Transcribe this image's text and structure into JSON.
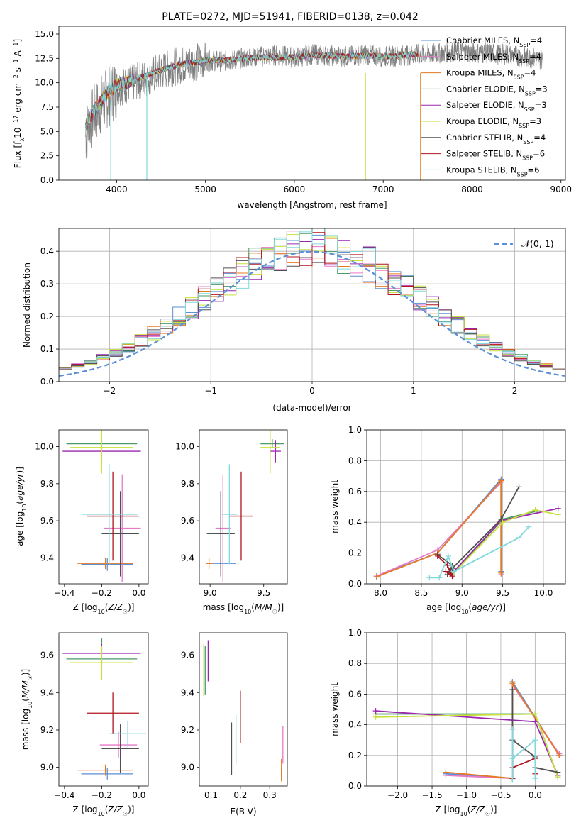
{
  "title": "PLATE=0272, MJD=51941, FIBERID=0138, z=0.042",
  "colors": {
    "Chabrier MILES": "#5b8fd6",
    "Salpeter MILES": "#e67ac8",
    "Kroupa MILES": "#e57a22",
    "Chabrier ELODIE": "#4a9a6a",
    "Salpeter ELODIE": "#9b27b0",
    "Kroupa ELODIE": "#c8e03a",
    "Chabrier STELIB": "#505050",
    "Salpeter STELIB": "#b0141e",
    "Kroupa STELIB": "#7fd8dc",
    "data": "#7f7f7f",
    "normal": "#5b8fd6"
  },
  "chart_data": [
    {
      "type": "line",
      "title": "PLATE=0272, MJD=51941, FIBERID=0138, z=0.042",
      "xlabel": "wavelength [Angstrom, rest frame]",
      "ylabel": "Flux [f_λ10^-17 erg cm^-2 s^-1 A^-1]",
      "xlim": [
        3350,
        9050
      ],
      "ylim": [
        0,
        15.8
      ],
      "xticks": [
        4000,
        5000,
        6000,
        7000,
        8000,
        9000
      ],
      "yticks": [
        0.0,
        2.5,
        5.0,
        7.5,
        10.0,
        12.5,
        15.0
      ],
      "grid": false,
      "legend": "top-right",
      "data_x": [
        3650,
        3700,
        3800,
        3900,
        4000,
        4200,
        4400,
        4600,
        4800,
        5000,
        5200,
        5400,
        5600,
        5800,
        6000,
        6200,
        6400,
        6600,
        6800,
        7000,
        7200,
        7400,
        7600,
        7800,
        8000,
        8200,
        8400,
        8600,
        8800
      ],
      "data_y": [
        4.5,
        6.0,
        7.5,
        8.5,
        9.5,
        10.0,
        10.8,
        11.5,
        12.0,
        12.3,
        12.2,
        12.5,
        12.7,
        12.8,
        12.6,
        12.9,
        12.8,
        12.7,
        12.9,
        12.7,
        12.8,
        12.9,
        13.0,
        13.2,
        13.1,
        13.0,
        12.9,
        12.6,
        12.4
      ],
      "model_x": [
        3650,
        3700,
        3800,
        3900,
        4000,
        4200,
        4400,
        4600,
        4800,
        5000,
        5200,
        5400,
        5600,
        5800,
        6000,
        6200,
        6400,
        6600,
        6800,
        7000,
        7200,
        7400
      ],
      "model_y": [
        5.5,
        6.5,
        7.8,
        9.0,
        9.8,
        10.3,
        11.0,
        11.6,
        12.0,
        12.3,
        12.3,
        12.5,
        12.6,
        12.6,
        12.6,
        12.8,
        12.8,
        12.7,
        12.8,
        12.7,
        12.8,
        13.0
      ],
      "series": [
        {
          "name": "Chabrier MILES, N_SSP=4",
          "label_main": "Chabrier MILES, N",
          "label_sub": "SSP",
          "label_tail": "=4"
        },
        {
          "name": "Salpeter MILES, N_SSP=4",
          "label_main": "Salpeter MILES, N",
          "label_sub": "SSP",
          "label_tail": "=4"
        },
        {
          "name": "Kroupa MILES, N_SSP=4",
          "label_main": "Kroupa MILES, N",
          "label_sub": "SSP",
          "label_tail": "=4"
        },
        {
          "name": "Chabrier ELODIE, N_SSP=3",
          "label_main": "Chabrier ELODIE, N",
          "label_sub": "SSP",
          "label_tail": "=3"
        },
        {
          "name": "Salpeter ELODIE, N_SSP=3",
          "label_main": "Salpeter ELODIE, N",
          "label_sub": "SSP",
          "label_tail": "=3"
        },
        {
          "name": "Kroupa ELODIE, N_SSP=3",
          "label_main": "Kroupa ELODIE, N",
          "label_sub": "SSP",
          "label_tail": "=3"
        },
        {
          "name": "Chabrier STELIB, N_SSP=4",
          "label_main": "Chabrier STELIB, N",
          "label_sub": "SSP",
          "label_tail": "=4"
        },
        {
          "name": "Salpeter STELIB, N_SSP=6",
          "label_main": "Salpeter STELIB, N",
          "label_sub": "SSP",
          "label_tail": "=6"
        },
        {
          "name": "Kroupa STELIB, N_SSP=6",
          "label_main": "Kroupa STELIB, N",
          "label_sub": "SSP",
          "label_tail": "=6"
        }
      ]
    },
    {
      "type": "histogram",
      "xlabel": "(data-model)/error",
      "ylabel": "Normed distribution",
      "xlim": [
        -2.5,
        2.5
      ],
      "ylim": [
        0,
        0.47
      ],
      "xticks": [
        -2,
        -1,
        0,
        1,
        2
      ],
      "yticks": [
        0.0,
        0.1,
        0.2,
        0.3,
        0.4
      ],
      "grid": true,
      "legend": "top-right",
      "legend_label": "𝒩(0, 1)",
      "bin_width": 0.125,
      "bin_start": -2.5,
      "normal_curve": true
    },
    {
      "type": "errorbar",
      "xlabel": "Z [log10(Z/Z☉)]",
      "ylabel": "age [log10(age/yr)]",
      "xlim": [
        -0.43,
        0.05
      ],
      "ylim": [
        9.26,
        10.09
      ],
      "xticks": [
        -0.4,
        -0.2,
        0.0
      ],
      "yticks": [
        9.4,
        9.6,
        9.8,
        10.0
      ],
      "points": [
        {
          "s": "Chabrier MILES",
          "x": -0.17,
          "xe": 0.14,
          "y": 9.365,
          "ye": 0.035
        },
        {
          "s": "Salpeter MILES",
          "x": -0.09,
          "xe": 0.1,
          "y": 9.56,
          "ye": 0.29
        },
        {
          "s": "Kroupa MILES",
          "x": -0.18,
          "xe": 0.15,
          "y": 9.37,
          "ye": 0.03
        },
        {
          "s": "Chabrier ELODIE",
          "x": -0.2,
          "xe": 0.19,
          "y": 10.015,
          "ye": 0.025
        },
        {
          "s": "Salpeter ELODIE",
          "x": -0.2,
          "xe": 0.21,
          "y": 9.975,
          "ye": 0.06
        },
        {
          "s": "Kroupa ELODIE",
          "x": -0.2,
          "xe": 0.17,
          "y": 9.995,
          "ye": 0.14
        },
        {
          "s": "Chabrier STELIB",
          "x": -0.1,
          "xe": 0.1,
          "y": 9.53,
          "ye": 0.23
        },
        {
          "s": "Salpeter STELIB",
          "x": -0.14,
          "xe": 0.14,
          "y": 9.625,
          "ye": 0.24
        },
        {
          "s": "Kroupa STELIB",
          "x": -0.16,
          "xe": 0.15,
          "y": 9.635,
          "ye": 0.27
        }
      ]
    },
    {
      "type": "errorbar",
      "xlabel": "mass [log10(M/M☉)]",
      "ylabel": "",
      "xlim": [
        8.9,
        9.72
      ],
      "ylim": [
        9.26,
        10.09
      ],
      "xticks": [
        9.0,
        9.5
      ],
      "yticks": [
        9.4,
        9.6,
        9.8,
        10.0
      ],
      "points": [
        {
          "s": "Chabrier MILES",
          "x": 9.1,
          "xe": 0.14,
          "y": 9.37,
          "ye": 0.03
        },
        {
          "s": "Salpeter MILES",
          "x": 9.12,
          "xe": 0.07,
          "y": 9.56,
          "ye": 0.29
        },
        {
          "s": "Kroupa MILES",
          "x": 8.99,
          "xe": 0.03,
          "y": 9.37,
          "ye": 0.03
        },
        {
          "s": "Chabrier ELODIE",
          "x": 9.58,
          "xe": 0.11,
          "y": 10.015,
          "ye": 0.025
        },
        {
          "s": "Salpeter ELODIE",
          "x": 9.61,
          "xe": 0.05,
          "y": 9.975,
          "ye": 0.06
        },
        {
          "s": "Kroupa ELODIE",
          "x": 9.56,
          "xe": 0.09,
          "y": 9.995,
          "ye": 0.14
        },
        {
          "s": "Chabrier STELIB",
          "x": 9.1,
          "xe": 0.13,
          "y": 9.53,
          "ye": 0.23
        },
        {
          "s": "Salpeter STELIB",
          "x": 9.29,
          "xe": 0.11,
          "y": 9.625,
          "ye": 0.24
        },
        {
          "s": "Kroupa STELIB",
          "x": 9.18,
          "xe": 0.07,
          "y": 9.635,
          "ye": 0.27
        }
      ]
    },
    {
      "type": "line",
      "xlabel": "age  [log10(age/yr)]",
      "ylabel": "mass weight",
      "xlim": [
        7.83,
        10.27
      ],
      "ylim": [
        0,
        1.0
      ],
      "xticks": [
        8.0,
        8.5,
        9.0,
        9.5,
        10.0
      ],
      "yticks": [
        0.0,
        0.2,
        0.4,
        0.6,
        0.8,
        1.0
      ],
      "grid": true,
      "series": [
        {
          "s": "Chabrier MILES",
          "x": [
            7.95,
            8.7,
            9.48,
            9.48
          ],
          "y": [
            0.05,
            0.2,
            0.68,
            0.08
          ]
        },
        {
          "s": "Salpeter MILES",
          "x": [
            7.95,
            8.7,
            9.48,
            9.48
          ],
          "y": [
            0.05,
            0.22,
            0.66,
            0.06
          ]
        },
        {
          "s": "Kroupa MILES",
          "x": [
            7.95,
            8.7,
            9.48,
            9.48
          ],
          "y": [
            0.045,
            0.2,
            0.67,
            0.07
          ]
        },
        {
          "s": "Chabrier ELODIE",
          "x": [
            8.88,
            9.5,
            9.9
          ],
          "y": [
            0.06,
            0.42,
            0.47
          ]
        },
        {
          "s": "Salpeter ELODIE",
          "x": [
            8.88,
            9.48,
            10.18
          ],
          "y": [
            0.07,
            0.41,
            0.49
          ]
        },
        {
          "s": "Kroupa ELODIE",
          "x": [
            8.88,
            9.5,
            9.9,
            10.18
          ],
          "y": [
            0.06,
            0.4,
            0.48,
            0.45
          ]
        },
        {
          "s": "Chabrier STELIB",
          "x": [
            8.7,
            8.88,
            8.82,
            8.88,
            9.48,
            9.7
          ],
          "y": [
            0.19,
            0.12,
            0.06,
            0.1,
            0.42,
            0.63
          ]
        },
        {
          "s": "Salpeter STELIB",
          "x": [
            8.7,
            8.82,
            8.88,
            8.8
          ],
          "y": [
            0.18,
            0.12,
            0.05,
            0.08
          ]
        },
        {
          "s": "Kroupa STELIB",
          "x": [
            8.6,
            8.72,
            8.83,
            8.9,
            9.7,
            9.82
          ],
          "y": [
            0.04,
            0.04,
            0.18,
            0.08,
            0.3,
            0.37
          ]
        }
      ]
    },
    {
      "type": "errorbar",
      "xlabel": "Z [log10(Z/Z☉)]",
      "ylabel": "mass [log10(M/M☉)]",
      "xlim": [
        -0.43,
        0.05
      ],
      "ylim": [
        8.9,
        9.72
      ],
      "xticks": [
        -0.4,
        -0.2,
        0.0
      ],
      "yticks": [
        9.0,
        9.2,
        9.4,
        9.6
      ],
      "points": [
        {
          "s": "Chabrier MILES",
          "x": -0.17,
          "xe": 0.14,
          "y": 8.965,
          "ye": 0.03
        },
        {
          "s": "Salpeter MILES",
          "x": -0.11,
          "xe": 0.1,
          "y": 9.12,
          "ye": 0.07
        },
        {
          "s": "Kroupa MILES",
          "x": -0.18,
          "xe": 0.15,
          "y": 8.985,
          "ye": 0.03
        },
        {
          "s": "Chabrier ELODIE",
          "x": -0.2,
          "xe": 0.19,
          "y": 9.58,
          "ye": 0.11
        },
        {
          "s": "Salpeter ELODIE",
          "x": -0.2,
          "xe": 0.21,
          "y": 9.61,
          "ye": 0.05
        },
        {
          "s": "Kroupa ELODIE",
          "x": -0.2,
          "xe": 0.17,
          "y": 9.56,
          "ye": 0.09
        },
        {
          "s": "Chabrier STELIB",
          "x": -0.1,
          "xe": 0.1,
          "y": 9.1,
          "ye": 0.13
        },
        {
          "s": "Salpeter STELIB",
          "x": -0.14,
          "xe": 0.14,
          "y": 9.29,
          "ye": 0.11
        },
        {
          "s": "Kroupa STELIB",
          "x": -0.06,
          "xe": 0.1,
          "y": 9.18,
          "ye": 0.07
        }
      ]
    },
    {
      "type": "errorbar",
      "xlabel": "E(B-V)",
      "ylabel": "",
      "xlim": [
        0.06,
        0.36
      ],
      "ylim": [
        8.9,
        9.72
      ],
      "xticks": [
        0.1,
        0.2,
        0.3
      ],
      "yticks": [
        9.0,
        9.2,
        9.4,
        9.6
      ],
      "points": [
        {
          "s": "Chabrier MILES",
          "x": 0.34,
          "xe": 0.0,
          "y": 8.965,
          "ye": 0.03
        },
        {
          "s": "Salpeter MILES",
          "x": 0.345,
          "xe": 0.0,
          "y": 9.12,
          "ye": 0.1
        },
        {
          "s": "Kroupa MILES",
          "x": 0.34,
          "xe": 0.0,
          "y": 8.985,
          "ye": 0.06
        },
        {
          "s": "Chabrier ELODIE",
          "x": 0.08,
          "xe": 0.0,
          "y": 9.52,
          "ye": 0.13
        },
        {
          "s": "Salpeter ELODIE",
          "x": 0.09,
          "xe": 0.0,
          "y": 9.57,
          "ye": 0.11
        },
        {
          "s": "Kroupa ELODIE",
          "x": 0.075,
          "xe": 0.0,
          "y": 9.52,
          "ye": 0.14
        },
        {
          "s": "Chabrier STELIB",
          "x": 0.17,
          "xe": 0.0,
          "y": 9.1,
          "ye": 0.14
        },
        {
          "s": "Salpeter STELIB",
          "x": 0.2,
          "xe": 0.0,
          "y": 9.27,
          "ye": 0.14
        },
        {
          "s": "Kroupa STELIB",
          "x": 0.185,
          "xe": 0.0,
          "y": 9.15,
          "ye": 0.13
        }
      ]
    },
    {
      "type": "line",
      "xlabel": "Z [log10(Z/Z☉)]",
      "ylabel": "mass weight",
      "xlim": [
        -2.45,
        0.44
      ],
      "ylim": [
        0,
        1.0
      ],
      "xticks": [
        -2.0,
        -1.5,
        -1.0,
        -0.5,
        0.0
      ],
      "yticks": [
        0.0,
        0.2,
        0.4,
        0.6,
        0.8,
        1.0
      ],
      "grid": true,
      "series": [
        {
          "s": "Chabrier MILES",
          "x": [
            -1.3,
            -0.33,
            -0.33,
            0.35
          ],
          "y": [
            0.08,
            0.05,
            0.68,
            0.2
          ]
        },
        {
          "s": "Salpeter MILES",
          "x": [
            -1.3,
            -0.33,
            -0.33,
            0.35
          ],
          "y": [
            0.07,
            0.05,
            0.66,
            0.21
          ]
        },
        {
          "s": "Kroupa MILES",
          "x": [
            -1.3,
            -0.33,
            -0.33,
            0.35
          ],
          "y": [
            0.09,
            0.05,
            0.67,
            0.2
          ]
        },
        {
          "s": "Chabrier ELODIE",
          "x": [
            -2.32,
            0.0,
            0.33
          ],
          "y": [
            0.47,
            0.47,
            0.06
          ]
        },
        {
          "s": "Salpeter ELODIE",
          "x": [
            -2.32,
            0.0,
            0.33
          ],
          "y": [
            0.49,
            0.42,
            0.07
          ]
        },
        {
          "s": "Kroupa ELODIE",
          "x": [
            -2.32,
            0.0,
            0.33
          ],
          "y": [
            0.45,
            0.47,
            0.06
          ]
        },
        {
          "s": "Chabrier STELIB",
          "x": [
            -0.33,
            -0.33,
            -0.33,
            0.0,
            0.0,
            0.33
          ],
          "y": [
            0.05,
            0.63,
            0.3,
            0.19,
            0.12,
            0.09
          ]
        },
        {
          "s": "Salpeter STELIB",
          "x": [
            -0.33,
            -0.33,
            0.0,
            0.0
          ],
          "y": [
            0.05,
            0.12,
            0.18,
            0.08
          ]
        },
        {
          "s": "Kroupa STELIB",
          "x": [
            -0.33,
            -0.33,
            -0.33,
            0.0,
            0.0
          ],
          "y": [
            0.04,
            0.37,
            0.18,
            0.3,
            0.05
          ]
        }
      ]
    }
  ]
}
